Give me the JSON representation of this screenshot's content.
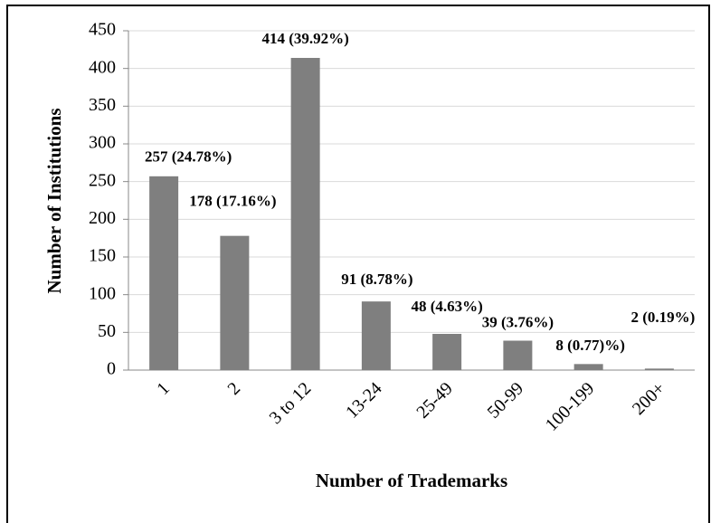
{
  "chart_data": {
    "type": "bar",
    "x_label": "Number of Trademarks",
    "y_label": "Number of Institutions",
    "categories": [
      "1",
      "2",
      "3 to 12",
      "13-24",
      "25-49",
      "50-99",
      "100-199",
      "200+"
    ],
    "values": [
      257,
      178,
      414,
      91,
      48,
      39,
      8,
      2
    ],
    "value_labels": [
      "257 (24.78%)",
      "178 (17.16%)",
      "414 (39.92%)",
      "91 (8.78%)",
      "48 (4.63%)",
      "39 (3.76%)",
      "8 (0.77)%)",
      "2 (0.19%)"
    ],
    "color": "#7f7f7f",
    "ylim": [
      0,
      450
    ],
    "yticks": [
      0,
      50,
      100,
      150,
      200,
      250,
      300,
      350,
      400,
      450
    ],
    "grid": true
  }
}
